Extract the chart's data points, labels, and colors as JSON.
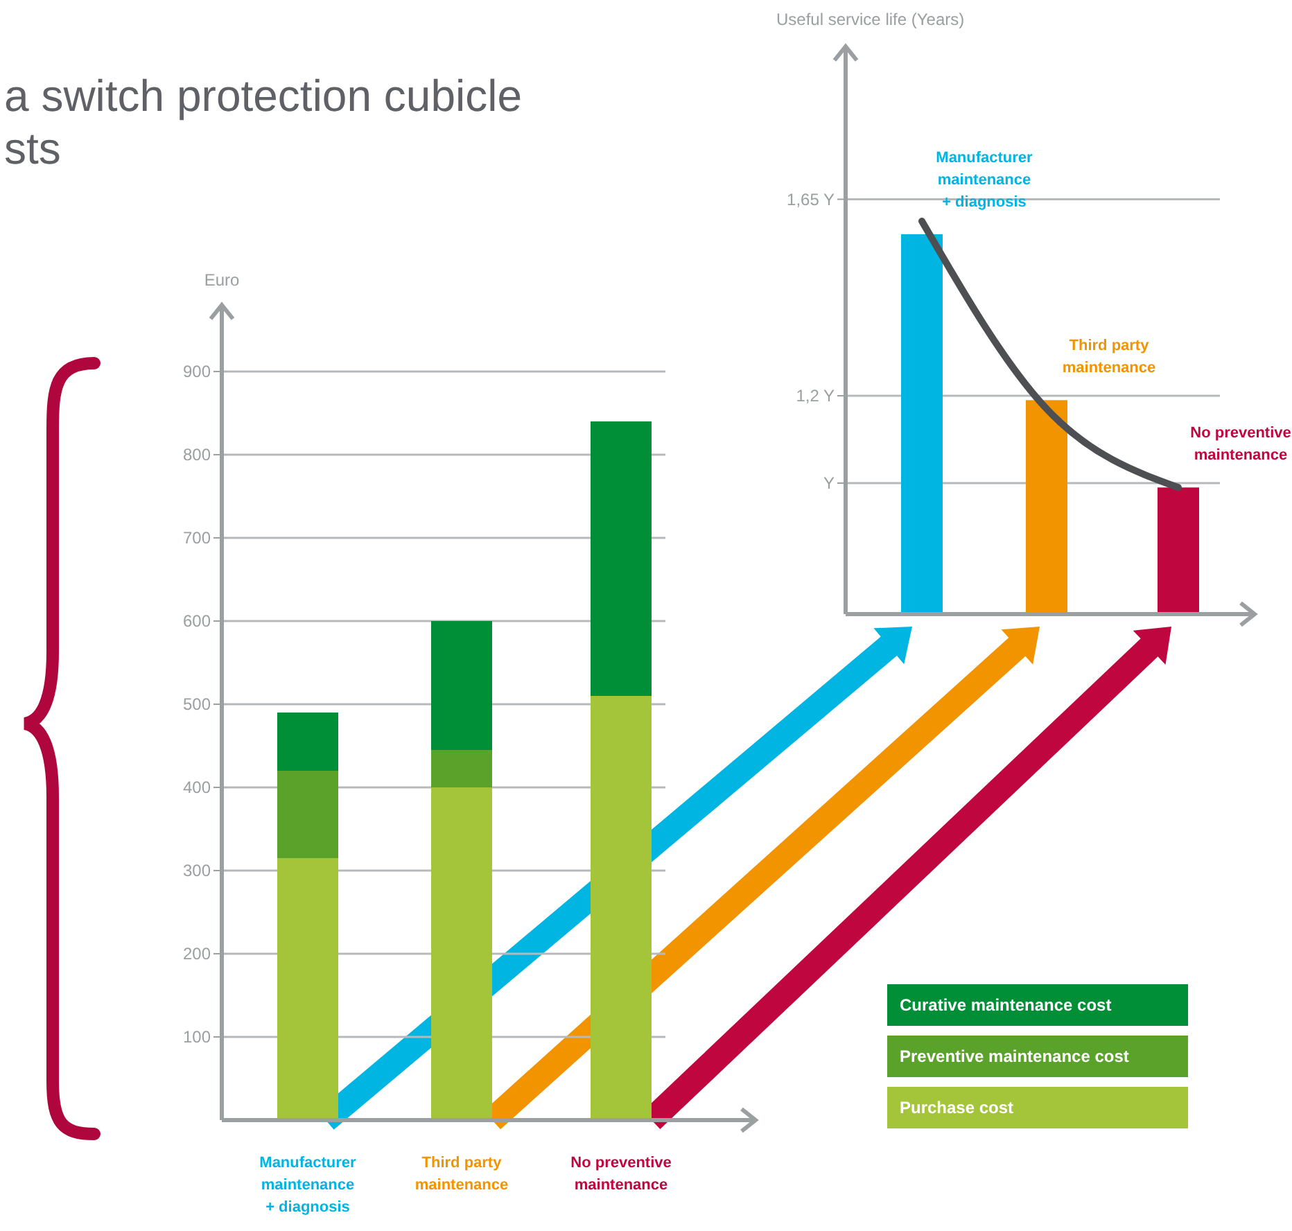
{
  "chart_data": [
    {
      "type": "bar",
      "title": "a switch protection cubicle\nsts",
      "ylabel": "Euro",
      "categories": [
        "Manufacturer\nmaintenance\n+ diagnosis",
        "Third party\nmaintenance",
        "No preventive\nmaintenance"
      ],
      "stacked": true,
      "series": [
        {
          "name": "Purchase cost",
          "color": "#a4c43a",
          "values": [
            315,
            400,
            510
          ]
        },
        {
          "name": "Preventive maintenance cost",
          "color": "#5ba22b",
          "values": [
            105,
            45,
            0
          ]
        },
        {
          "name": "Curative maintenance cost",
          "color": "#008f36",
          "values": [
            70,
            155,
            330
          ]
        }
      ],
      "ylim": [
        0,
        980
      ],
      "yticks": [
        100,
        200,
        300,
        400,
        500,
        600,
        700,
        800,
        900
      ],
      "grid": "y",
      "legend": "bottom right"
    },
    {
      "type": "bar",
      "ylabel": "Useful service life (Years)",
      "categories": [
        "Manufacturer\nmaintenance\n+ diagnosis",
        "Third party\nmaintenance",
        "No preventive\nmaintenance"
      ],
      "series": [
        {
          "colors": [
            "#00b5e2",
            "#f29400",
            "#c0063f"
          ],
          "base": [
            0.7,
            0.7,
            0.7
          ],
          "values": [
            0.87,
            0.49,
            0.29
          ]
        },
        {
          "type": "line",
          "color": "#4d4f53",
          "values": [
            1.6,
            1.17,
            0.99
          ]
        }
      ],
      "ylim": [
        0.7,
        2.0
      ],
      "yticks": [
        {
          "value": 1,
          "label": "Y"
        },
        {
          "value": 1.2,
          "label": "1,2 Y"
        },
        {
          "value": 1.65,
          "label": "1,65 Y"
        }
      ],
      "grid": "y"
    }
  ]
}
